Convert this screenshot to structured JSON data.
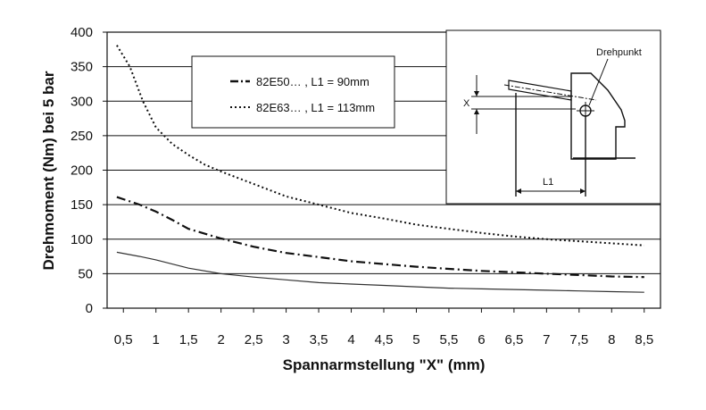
{
  "chart_data": {
    "type": "line",
    "xlabel": "Spannarmstellung \"X\" (mm)",
    "ylabel": "Drehmoment (Nm) bei 5 bar",
    "xlim": [
      0.25,
      8.75
    ],
    "ylim": [
      0,
      400
    ],
    "x_ticks": [
      "0,5",
      "1",
      "1,5",
      "2",
      "2,5",
      "3",
      "3,5",
      "4",
      "4,5",
      "5",
      "5,5",
      "6",
      "6,5",
      "7",
      "7,5",
      "8",
      "8,5"
    ],
    "y_ticks": [
      "0",
      "50",
      "100",
      "150",
      "200",
      "250",
      "300",
      "350",
      "400"
    ],
    "grid": "horizontal",
    "legend_position": "top-center",
    "series": [
      {
        "name": "82E50… , L1 = 90mm",
        "style": "dash-dot",
        "color": "#111111",
        "x": [
          0.4,
          0.75,
          1,
          1.25,
          1.5,
          2,
          2.5,
          3,
          3.5,
          4,
          4.5,
          5,
          5.5,
          6,
          6.5,
          7,
          7.5,
          8,
          8.5
        ],
        "y": [
          161,
          150,
          140,
          128,
          115,
          101,
          89,
          80,
          74,
          68,
          64,
          60,
          57,
          54,
          52,
          50,
          48,
          46,
          45
        ]
      },
      {
        "name": "82E63… , L1 = 113mm",
        "style": "dotted",
        "color": "#111111",
        "x": [
          0.4,
          0.6,
          0.8,
          1,
          1.25,
          1.5,
          1.75,
          2,
          2.5,
          3,
          3.5,
          4,
          4.5,
          5,
          5.5,
          6,
          6.5,
          7,
          7.5,
          8,
          8.5
        ],
        "y": [
          381,
          350,
          300,
          262,
          238,
          222,
          208,
          198,
          180,
          162,
          150,
          138,
          130,
          121,
          115,
          109,
          104,
          100,
          97,
          94,
          91
        ]
      },
      {
        "name": "",
        "style": "solid",
        "color": "#333333",
        "x": [
          0.4,
          0.75,
          1,
          1.5,
          2,
          2.5,
          3,
          3.5,
          4,
          4.5,
          5,
          5.5,
          6,
          6.5,
          7,
          7.5,
          8,
          8.5
        ],
        "y": [
          81,
          75,
          70,
          58,
          50,
          45,
          41,
          37,
          35,
          33,
          31,
          29,
          28,
          27,
          26,
          25,
          24,
          23
        ]
      }
    ],
    "inset": {
      "label_pivot": "Drehpunkt",
      "label_x": "X",
      "label_length": "L1"
    }
  }
}
